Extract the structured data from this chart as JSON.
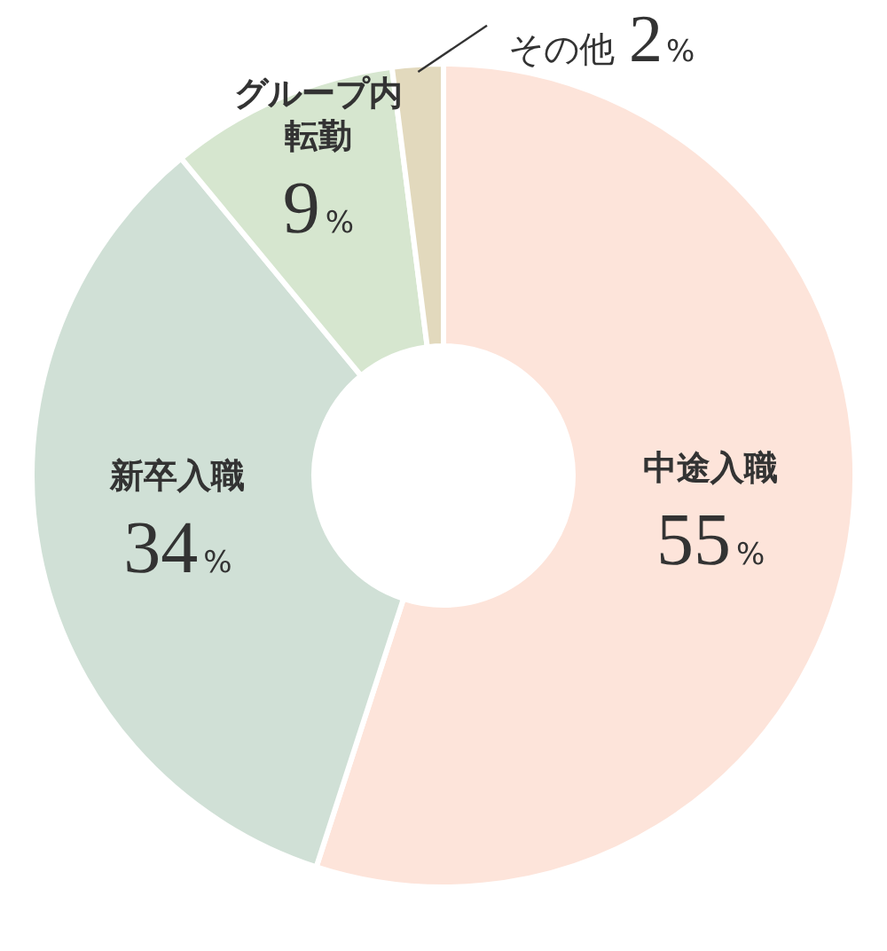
{
  "chart_data": {
    "type": "donut",
    "categories": [
      "中途入職",
      "新卒入職",
      "グループ内転勤",
      "その他"
    ],
    "values": [
      55,
      34,
      9,
      2
    ],
    "colors": [
      "#fde4da",
      "#d0e0d6",
      "#d6e6cf",
      "#e2d9bd"
    ],
    "value_labels": [
      "55%",
      "34%",
      "9%",
      "2%"
    ]
  }
}
